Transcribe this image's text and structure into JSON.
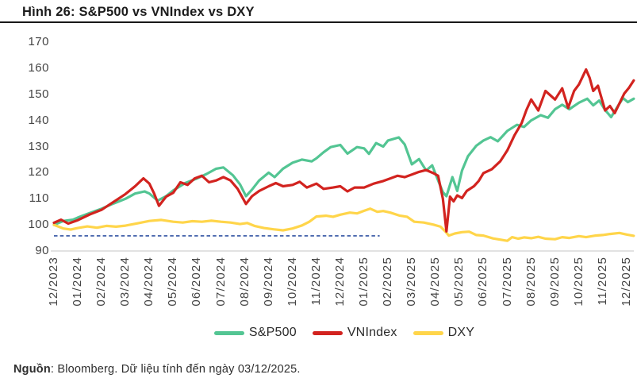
{
  "header": {
    "title": "Hình 26: S&P500 vs VNIndex vs DXY"
  },
  "footer": {
    "source_label": "Nguồn",
    "source_text": ": Bloomberg. Dữ liệu tính đến ngày 03/12/2025."
  },
  "chart_data": {
    "type": "line",
    "title": "Hình 26: S&P500 vs VNIndex vs DXY",
    "xlabel": "",
    "ylabel": "",
    "grid": false,
    "legend_position": "bottom",
    "y_ticks": [
      90,
      100,
      110,
      120,
      130,
      140,
      150,
      160,
      170
    ],
    "ylim": [
      88,
      172
    ],
    "x_tick_labels": [
      "12/2023",
      "01/2024",
      "02/2024",
      "03/2024",
      "04/2024",
      "05/2024",
      "06/2024",
      "07/2024",
      "08/2024",
      "09/2024",
      "10/2024",
      "11/2024",
      "12/2024",
      "01/2025",
      "02/2025",
      "03/2025",
      "04/2025",
      "05/2025",
      "06/2025",
      "07/2025",
      "08/2025",
      "09/2025",
      "10/2025",
      "11/2025",
      "12/2025"
    ],
    "x_unit": "months since 12/2023, indexed base 100",
    "reference_line": {
      "value": 95.8,
      "x_start": 0,
      "x_end": 13.65,
      "color": "#4C69AE",
      "style": "dashed"
    },
    "axis_color": "#d8d8d8",
    "series": [
      {
        "name": "S&P500",
        "color": "#53C593",
        "points": [
          [
            0,
            100
          ],
          [
            0.4,
            101.5
          ],
          [
            0.8,
            102
          ],
          [
            1,
            102.8
          ],
          [
            1.5,
            104.5
          ],
          [
            2,
            106.2
          ],
          [
            2.5,
            108.2
          ],
          [
            3,
            110
          ],
          [
            3.4,
            112
          ],
          [
            3.8,
            112.8
          ],
          [
            4,
            112
          ],
          [
            4.35,
            109.3
          ],
          [
            4.7,
            111
          ],
          [
            5,
            113.2
          ],
          [
            5.5,
            116
          ],
          [
            6,
            117.8
          ],
          [
            6.4,
            119.5
          ],
          [
            6.8,
            121.5
          ],
          [
            7.1,
            122
          ],
          [
            7.5,
            119
          ],
          [
            7.8,
            115.5
          ],
          [
            8.05,
            111
          ],
          [
            8.3,
            113.5
          ],
          [
            8.6,
            117
          ],
          [
            9,
            120
          ],
          [
            9.25,
            118.3
          ],
          [
            9.6,
            121.5
          ],
          [
            10,
            123.8
          ],
          [
            10.4,
            125
          ],
          [
            10.8,
            124.3
          ],
          [
            11,
            125.5
          ],
          [
            11.3,
            127.8
          ],
          [
            11.6,
            129.8
          ],
          [
            12,
            130.6
          ],
          [
            12.3,
            127.3
          ],
          [
            12.7,
            129.8
          ],
          [
            13,
            129.3
          ],
          [
            13.2,
            127.2
          ],
          [
            13.5,
            131.3
          ],
          [
            13.8,
            130
          ],
          [
            14,
            132.3
          ],
          [
            14.45,
            133.5
          ],
          [
            14.7,
            130.8
          ],
          [
            15,
            123.2
          ],
          [
            15.3,
            125.2
          ],
          [
            15.6,
            120.8
          ],
          [
            15.85,
            122.8
          ],
          [
            16.1,
            117
          ],
          [
            16.3,
            112.5
          ],
          [
            16.45,
            111
          ],
          [
            16.7,
            118.3
          ],
          [
            16.9,
            113
          ],
          [
            17.1,
            120.8
          ],
          [
            17.35,
            126.3
          ],
          [
            17.7,
            130.3
          ],
          [
            18,
            132.3
          ],
          [
            18.3,
            133.6
          ],
          [
            18.6,
            132
          ],
          [
            19,
            136
          ],
          [
            19.4,
            138.3
          ],
          [
            19.7,
            137.5
          ],
          [
            20,
            140
          ],
          [
            20.4,
            142
          ],
          [
            20.7,
            141
          ],
          [
            21,
            144.3
          ],
          [
            21.3,
            146
          ],
          [
            21.6,
            144.3
          ],
          [
            22,
            146.8
          ],
          [
            22.35,
            148.3
          ],
          [
            22.6,
            145.8
          ],
          [
            22.85,
            147.6
          ],
          [
            23.1,
            144
          ],
          [
            23.35,
            141.3
          ],
          [
            23.6,
            145
          ],
          [
            23.85,
            148.6
          ],
          [
            24.05,
            147
          ],
          [
            24.3,
            148.3
          ]
        ]
      },
      {
        "name": "VNIndex",
        "color": "#D2231F",
        "points": [
          [
            0,
            100.8
          ],
          [
            0.3,
            102
          ],
          [
            0.6,
            100.5
          ],
          [
            1,
            101.8
          ],
          [
            1.5,
            104
          ],
          [
            2,
            105.8
          ],
          [
            2.5,
            108.8
          ],
          [
            3,
            111.8
          ],
          [
            3.4,
            114.8
          ],
          [
            3.75,
            117.8
          ],
          [
            4,
            115.8
          ],
          [
            4.2,
            112
          ],
          [
            4.4,
            107.3
          ],
          [
            4.7,
            110.8
          ],
          [
            5,
            112.3
          ],
          [
            5.3,
            116.3
          ],
          [
            5.6,
            115.3
          ],
          [
            5.9,
            117.8
          ],
          [
            6.2,
            118.8
          ],
          [
            6.5,
            116.3
          ],
          [
            6.8,
            117
          ],
          [
            7.1,
            118.3
          ],
          [
            7.4,
            117
          ],
          [
            7.7,
            113.8
          ],
          [
            8.05,
            108
          ],
          [
            8.3,
            111
          ],
          [
            8.6,
            113
          ],
          [
            9,
            114.8
          ],
          [
            9.3,
            116
          ],
          [
            9.6,
            114.8
          ],
          [
            10,
            115.3
          ],
          [
            10.3,
            116.5
          ],
          [
            10.6,
            114.3
          ],
          [
            11,
            115.8
          ],
          [
            11.3,
            113.8
          ],
          [
            11.7,
            114.3
          ],
          [
            12,
            114.8
          ],
          [
            12.3,
            112.8
          ],
          [
            12.6,
            114.3
          ],
          [
            13,
            114.3
          ],
          [
            13.4,
            115.8
          ],
          [
            13.8,
            116.8
          ],
          [
            14.1,
            117.8
          ],
          [
            14.4,
            118.8
          ],
          [
            14.7,
            118.3
          ],
          [
            15,
            119.3
          ],
          [
            15.3,
            120.3
          ],
          [
            15.6,
            121
          ],
          [
            15.9,
            119.8
          ],
          [
            16.1,
            118.8
          ],
          [
            16.3,
            110
          ],
          [
            16.45,
            97.5
          ],
          [
            16.6,
            110.8
          ],
          [
            16.75,
            109
          ],
          [
            16.9,
            111.3
          ],
          [
            17.1,
            110.3
          ],
          [
            17.3,
            113
          ],
          [
            17.6,
            114.8
          ],
          [
            17.8,
            116.8
          ],
          [
            18,
            119.8
          ],
          [
            18.35,
            121.3
          ],
          [
            18.7,
            124.3
          ],
          [
            19,
            128.5
          ],
          [
            19.3,
            134.3
          ],
          [
            19.6,
            139
          ],
          [
            19.8,
            144
          ],
          [
            20,
            148
          ],
          [
            20.3,
            143.8
          ],
          [
            20.6,
            151.3
          ],
          [
            21,
            148
          ],
          [
            21.3,
            152.3
          ],
          [
            21.55,
            144.8
          ],
          [
            21.8,
            151.3
          ],
          [
            22,
            153.8
          ],
          [
            22.3,
            159.5
          ],
          [
            22.45,
            156.3
          ],
          [
            22.6,
            151.3
          ],
          [
            22.8,
            153.3
          ],
          [
            23.1,
            143.8
          ],
          [
            23.3,
            145.5
          ],
          [
            23.5,
            142.8
          ],
          [
            23.9,
            150.3
          ],
          [
            24.1,
            152.5
          ],
          [
            24.3,
            155.3
          ]
        ]
      },
      {
        "name": "DXY",
        "color": "#FFD54A",
        "points": [
          [
            0,
            100
          ],
          [
            0.4,
            98.6
          ],
          [
            0.7,
            98.2
          ],
          [
            1,
            98.8
          ],
          [
            1.4,
            99.4
          ],
          [
            1.8,
            98.9
          ],
          [
            2.2,
            99.6
          ],
          [
            2.6,
            99.3
          ],
          [
            3,
            99.7
          ],
          [
            3.5,
            100.6
          ],
          [
            4,
            101.5
          ],
          [
            4.5,
            101.9
          ],
          [
            5,
            101.2
          ],
          [
            5.4,
            100.9
          ],
          [
            5.8,
            101.4
          ],
          [
            6.2,
            101.2
          ],
          [
            6.6,
            101.6
          ],
          [
            7,
            101.2
          ],
          [
            7.4,
            100.9
          ],
          [
            7.8,
            100.3
          ],
          [
            8.1,
            100.7
          ],
          [
            8.4,
            99.6
          ],
          [
            8.8,
            98.8
          ],
          [
            9.2,
            98.3
          ],
          [
            9.6,
            97.9
          ],
          [
            10,
            98.6
          ],
          [
            10.4,
            99.8
          ],
          [
            10.7,
            101.2
          ],
          [
            11,
            103.2
          ],
          [
            11.4,
            103.5
          ],
          [
            11.7,
            103.1
          ],
          [
            12,
            103.9
          ],
          [
            12.4,
            104.7
          ],
          [
            12.7,
            104.4
          ],
          [
            13,
            105.4
          ],
          [
            13.25,
            106.2
          ],
          [
            13.55,
            105
          ],
          [
            13.8,
            105.3
          ],
          [
            14.1,
            104.7
          ],
          [
            14.5,
            103.5
          ],
          [
            14.8,
            103.1
          ],
          [
            15.1,
            101.2
          ],
          [
            15.5,
            100.9
          ],
          [
            15.9,
            100.1
          ],
          [
            16.2,
            99.3
          ],
          [
            16.4,
            97.5
          ],
          [
            16.55,
            95.9
          ],
          [
            16.8,
            96.7
          ],
          [
            17.1,
            97.2
          ],
          [
            17.4,
            97.4
          ],
          [
            17.7,
            96.1
          ],
          [
            18,
            95.9
          ],
          [
            18.4,
            94.8
          ],
          [
            18.8,
            94.2
          ],
          [
            19,
            93.9
          ],
          [
            19.2,
            95.3
          ],
          [
            19.45,
            94.7
          ],
          [
            19.7,
            95.2
          ],
          [
            20,
            94.9
          ],
          [
            20.3,
            95.4
          ],
          [
            20.6,
            94.7
          ],
          [
            21,
            94.5
          ],
          [
            21.3,
            95.3
          ],
          [
            21.6,
            95
          ],
          [
            22,
            95.7
          ],
          [
            22.3,
            95.3
          ],
          [
            22.7,
            95.9
          ],
          [
            23,
            96.1
          ],
          [
            23.3,
            96.5
          ],
          [
            23.7,
            96.9
          ],
          [
            24,
            96.3
          ],
          [
            24.3,
            95.8
          ]
        ]
      }
    ]
  }
}
